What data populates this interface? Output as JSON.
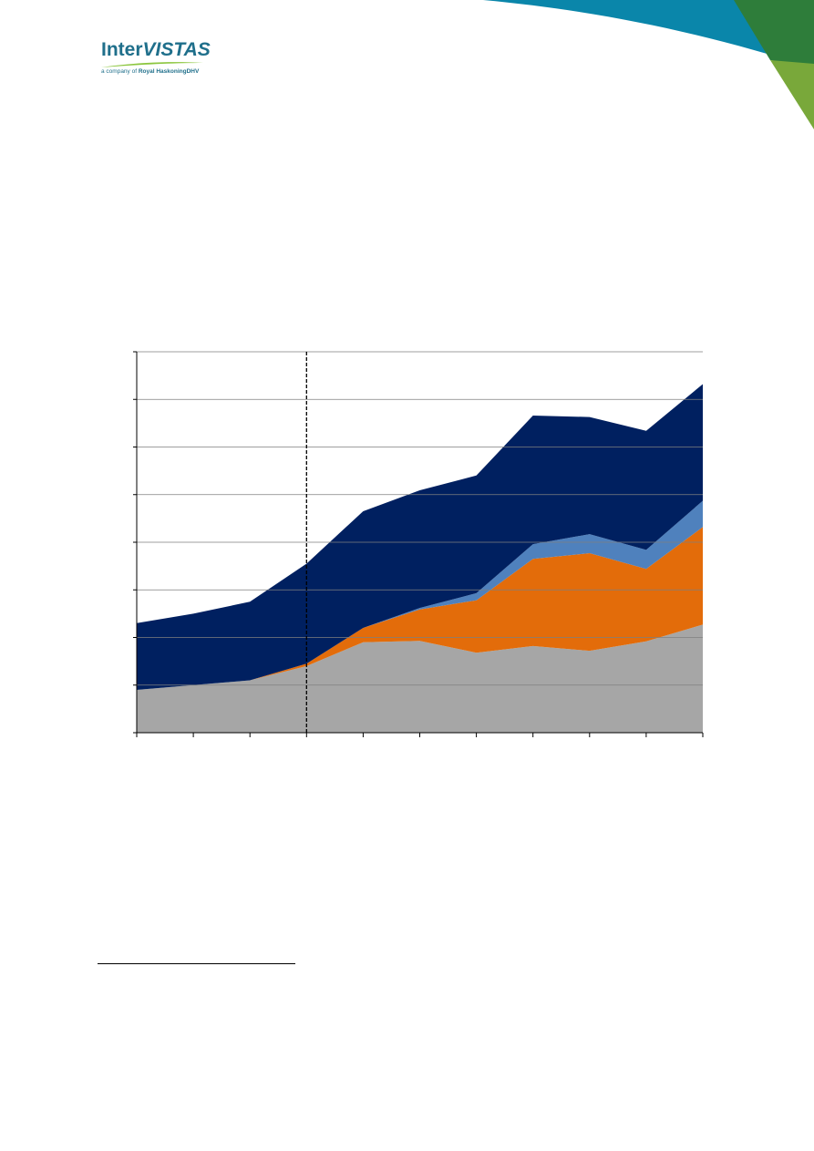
{
  "brand": {
    "name_prefix": "Inter",
    "name_suffix": "VISTAS",
    "tagline_prefix": "a company of",
    "tagline_company": "Royal HaskoningDHV",
    "colors": {
      "teal": "#1f6f8b",
      "lime": "#8cc63f"
    }
  },
  "chart_data": {
    "type": "area",
    "stacked": true,
    "x": [
      0,
      1,
      2,
      3,
      4,
      5,
      6,
      7,
      8,
      9,
      10
    ],
    "series": [
      {
        "color": "#a6a6a6",
        "values": [
          0.9,
          1.0,
          1.1,
          1.4,
          1.9,
          1.93,
          1.68,
          1.82,
          1.72,
          1.92,
          2.27
        ]
      },
      {
        "color": "#e36c0a",
        "values": [
          0.0,
          0.0,
          0.0,
          0.05,
          0.3,
          0.66,
          1.1,
          1.83,
          2.05,
          1.52,
          2.05
        ]
      },
      {
        "color": "#4f81bd",
        "values": [
          0.0,
          0.0,
          0.0,
          0.0,
          0.0,
          0.03,
          0.15,
          0.31,
          0.4,
          0.4,
          0.55
        ]
      },
      {
        "color": "#002060",
        "values": [
          1.4,
          1.5,
          1.65,
          2.1,
          2.45,
          2.47,
          2.47,
          2.7,
          2.46,
          2.5,
          2.45
        ]
      }
    ],
    "ylim": [
      0,
      8
    ],
    "yticks": [
      0,
      1,
      2,
      3,
      4,
      5,
      6,
      7,
      8
    ],
    "xlim": [
      0,
      10
    ],
    "grid": true,
    "divider_at_x": 3,
    "divider_style": "dashed"
  }
}
